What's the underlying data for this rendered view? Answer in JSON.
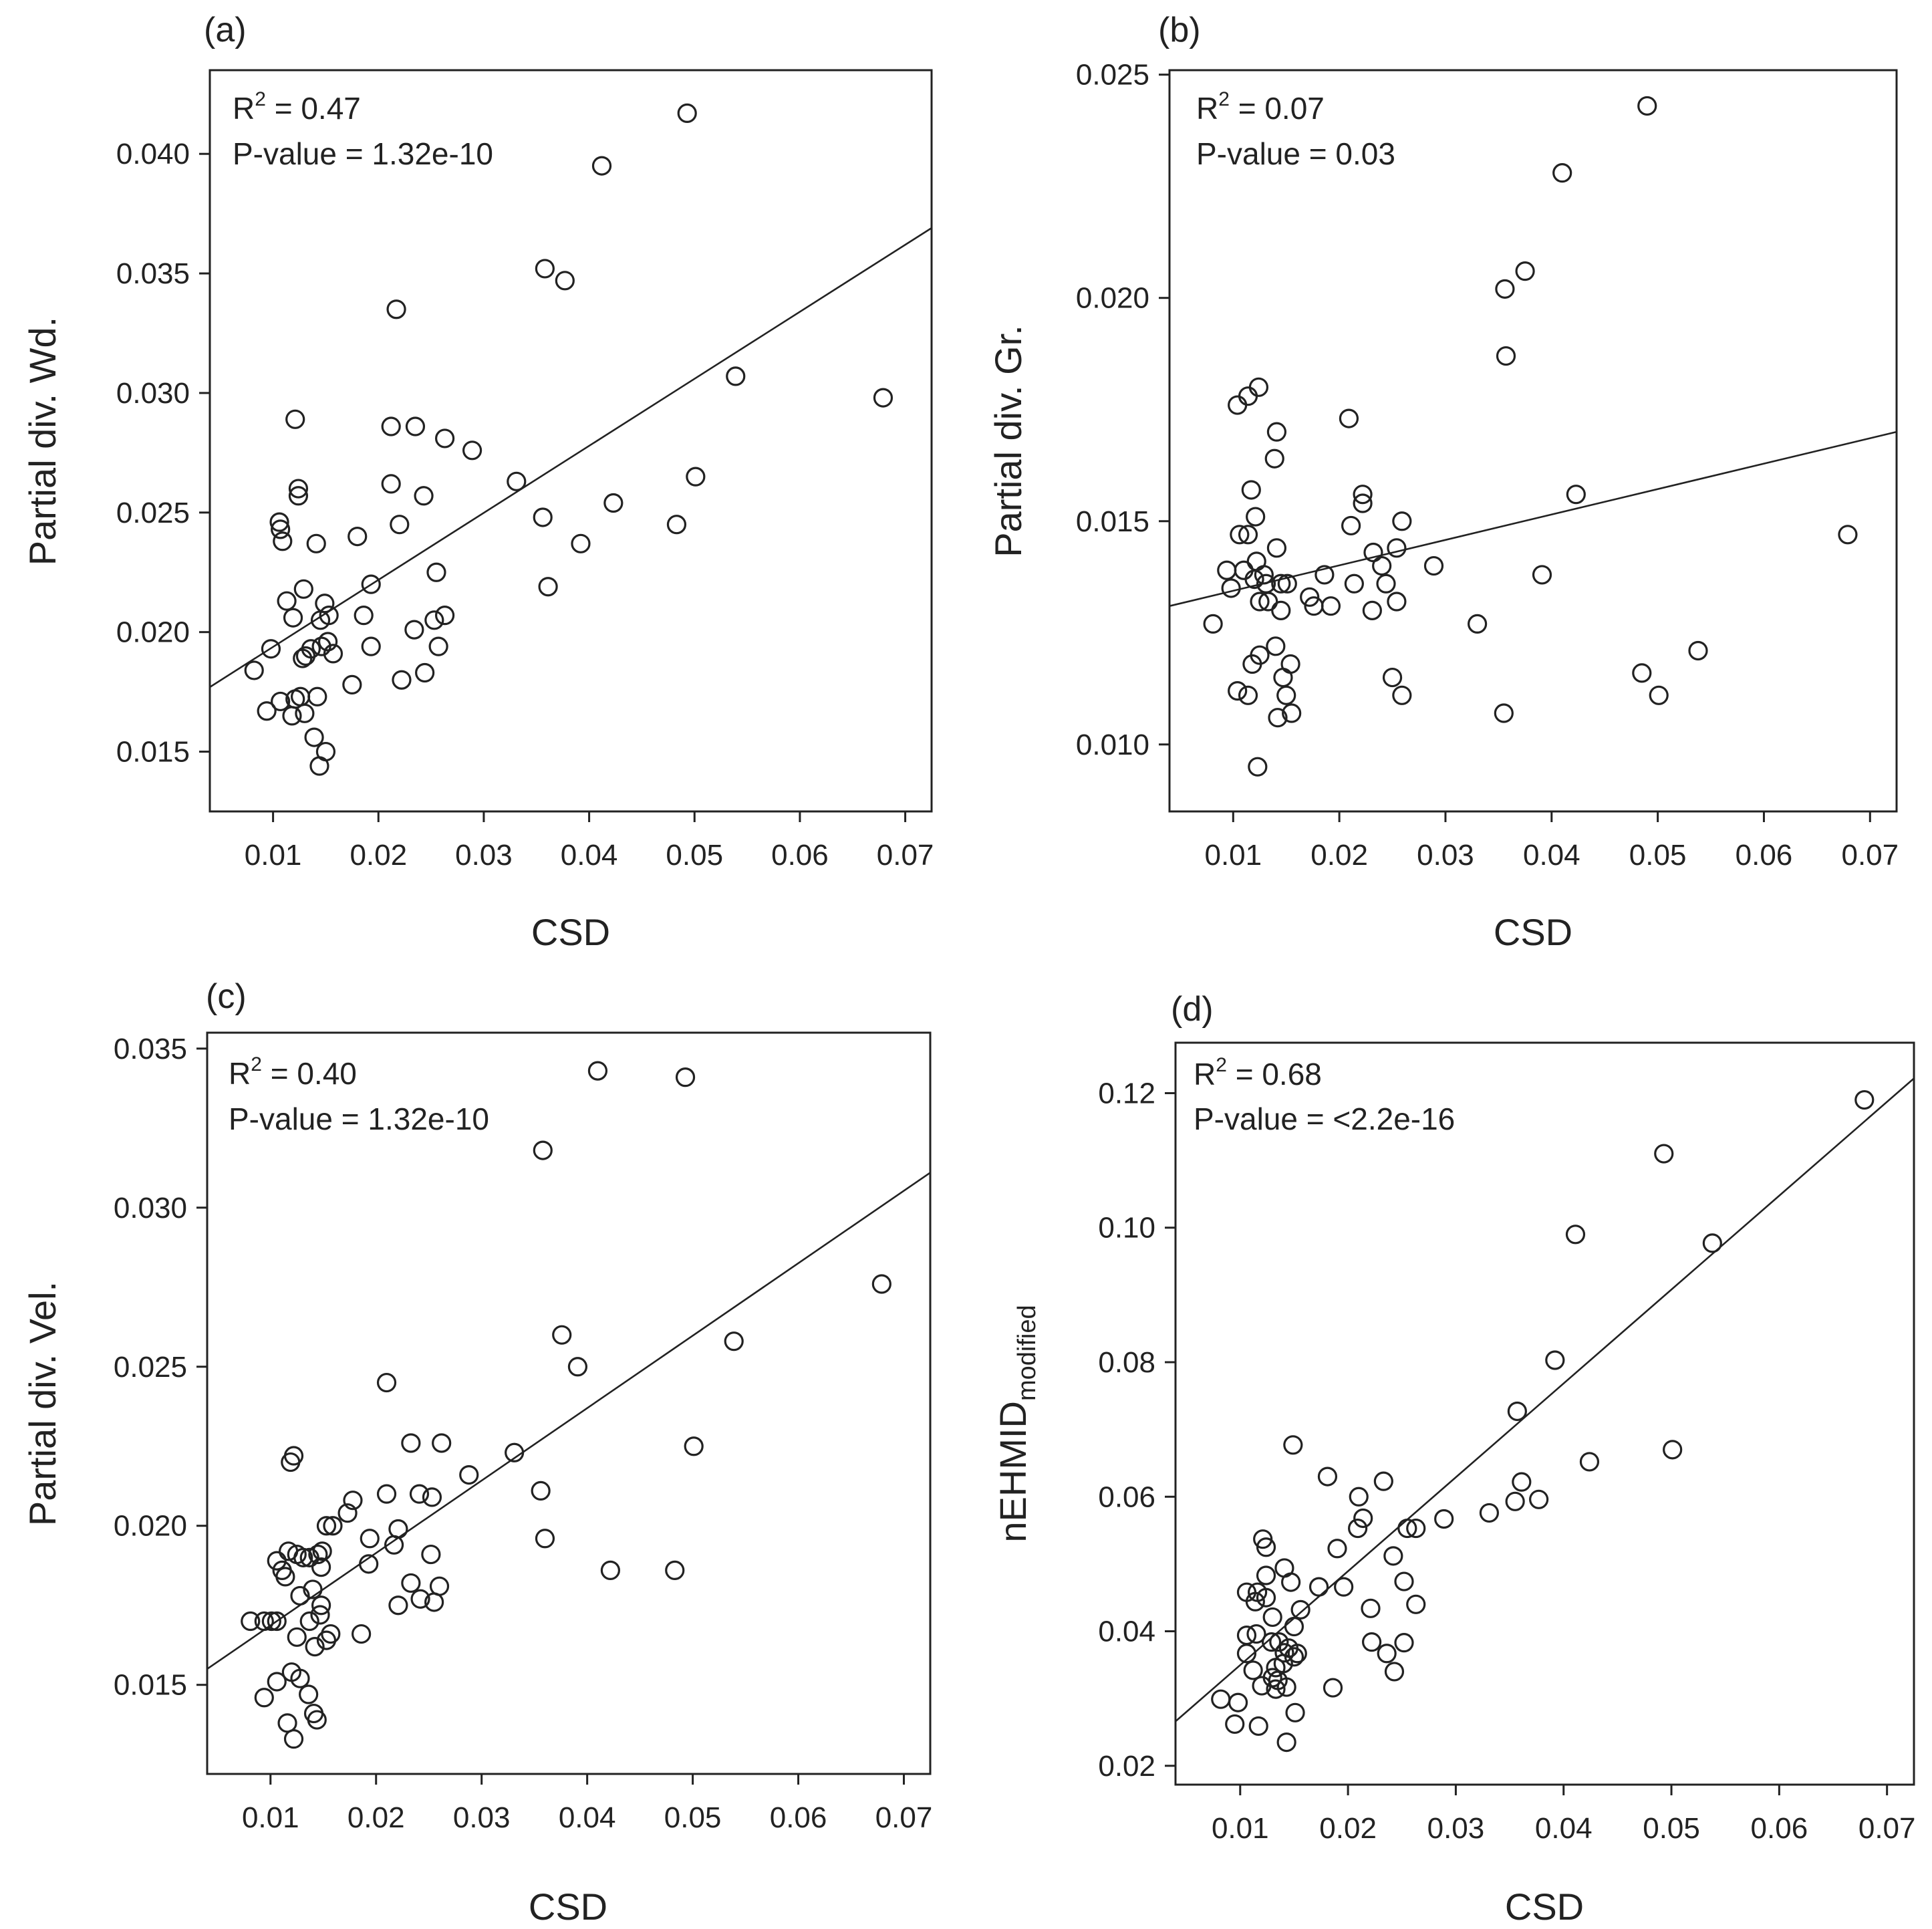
{
  "chart_data": [
    {
      "type": "scatter",
      "panel_label": "(a)",
      "xlabel": "CSD",
      "ylabel": "Partial div. Wd.",
      "xlim": [
        0.004,
        0.0725
      ],
      "ylim": [
        0.0125,
        0.0435
      ],
      "xticks": [
        0.01,
        0.02,
        0.03,
        0.04,
        0.05,
        0.06,
        0.07
      ],
      "xtick_labels": [
        "0.01",
        "0.02",
        "0.03",
        "0.04",
        "0.05",
        "0.06",
        "0.07"
      ],
      "yticks": [
        0.015,
        0.02,
        0.025,
        0.03,
        0.035,
        0.04
      ],
      "ytick_labels": [
        "0.015",
        "0.020",
        "0.025",
        "0.030",
        "0.035",
        "0.040"
      ],
      "stats": {
        "r2_prefix": "R",
        "r2_exp": "2",
        "r2_value": " = 0.47",
        "p_value": "P-value = 1.32e-10"
      },
      "fit_line": {
        "x": [
          0.004,
          0.0725
        ],
        "y": [
          0.0177,
          0.0369
        ]
      },
      "points": [
        [
          0.0493,
          0.0417
        ],
        [
          0.0412,
          0.0395
        ],
        [
          0.0358,
          0.0352
        ],
        [
          0.0377,
          0.0347
        ],
        [
          0.0217,
          0.0335
        ],
        [
          0.0539,
          0.0307
        ],
        [
          0.0679,
          0.0298
        ],
        [
          0.0121,
          0.0289
        ],
        [
          0.0212,
          0.0286
        ],
        [
          0.0235,
          0.0286
        ],
        [
          0.0263,
          0.0281
        ],
        [
          0.0289,
          0.0276
        ],
        [
          0.0331,
          0.0263
        ],
        [
          0.0501,
          0.0265
        ],
        [
          0.0212,
          0.0262
        ],
        [
          0.0124,
          0.026
        ],
        [
          0.0124,
          0.0257
        ],
        [
          0.0243,
          0.0257
        ],
        [
          0.0423,
          0.0254
        ],
        [
          0.0106,
          0.0246
        ],
        [
          0.0107,
          0.0243
        ],
        [
          0.0356,
          0.0248
        ],
        [
          0.0483,
          0.0245
        ],
        [
          0.022,
          0.0245
        ],
        [
          0.0109,
          0.0238
        ],
        [
          0.0141,
          0.0237
        ],
        [
          0.018,
          0.024
        ],
        [
          0.0392,
          0.0237
        ],
        [
          0.0255,
          0.0225
        ],
        [
          0.0361,
          0.0219
        ],
        [
          0.0129,
          0.0218
        ],
        [
          0.0193,
          0.022
        ],
        [
          0.0113,
          0.0213
        ],
        [
          0.0149,
          0.0212
        ],
        [
          0.0186,
          0.0207
        ],
        [
          0.0263,
          0.0207
        ],
        [
          0.0119,
          0.0206
        ],
        [
          0.0145,
          0.0205
        ],
        [
          0.0153,
          0.0207
        ],
        [
          0.0253,
          0.0205
        ],
        [
          0.0234,
          0.0201
        ],
        [
          0.0082,
          0.0184
        ],
        [
          0.0098,
          0.0193
        ],
        [
          0.0131,
          0.019
        ],
        [
          0.0128,
          0.0189
        ],
        [
          0.0136,
          0.0193
        ],
        [
          0.0146,
          0.0194
        ],
        [
          0.0152,
          0.0196
        ],
        [
          0.0157,
          0.0191
        ],
        [
          0.0193,
          0.0194
        ],
        [
          0.0257,
          0.0194
        ],
        [
          0.0244,
          0.0183
        ],
        [
          0.0222,
          0.018
        ],
        [
          0.0175,
          0.0178
        ],
        [
          0.0094,
          0.0167
        ],
        [
          0.0107,
          0.0171
        ],
        [
          0.0118,
          0.0165
        ],
        [
          0.0121,
          0.0172
        ],
        [
          0.0126,
          0.0173
        ],
        [
          0.013,
          0.0166
        ],
        [
          0.0142,
          0.0173
        ],
        [
          0.0139,
          0.0156
        ],
        [
          0.015,
          0.015
        ],
        [
          0.0144,
          0.0144
        ]
      ]
    },
    {
      "type": "scatter",
      "panel_label": "(b)",
      "xlabel": "CSD",
      "ylabel": "Partial div. Gr.",
      "xlim": [
        0.004,
        0.0725
      ],
      "ylim": [
        0.0085,
        0.0251
      ],
      "xticks": [
        0.01,
        0.02,
        0.03,
        0.04,
        0.05,
        0.06,
        0.07
      ],
      "xtick_labels": [
        "0.01",
        "0.02",
        "0.03",
        "0.04",
        "0.05",
        "0.06",
        "0.07"
      ],
      "yticks": [
        0.01,
        0.015,
        0.02,
        0.025
      ],
      "ytick_labels": [
        "0.010",
        "0.015",
        "0.020",
        "0.025"
      ],
      "stats": {
        "r2_prefix": "R",
        "r2_exp": "2",
        "r2_value": " = 0.07",
        "p_value": "P-value = 0.03"
      },
      "fit_line": {
        "x": [
          0.004,
          0.0725
        ],
        "y": [
          0.0131,
          0.017
        ]
      },
      "points": [
        [
          0.049,
          0.0243
        ],
        [
          0.041,
          0.0228
        ],
        [
          0.0356,
          0.0202
        ],
        [
          0.0375,
          0.0206
        ],
        [
          0.0357,
          0.0187
        ],
        [
          0.0104,
          0.0176
        ],
        [
          0.0114,
          0.0178
        ],
        [
          0.0124,
          0.018
        ],
        [
          0.0209,
          0.0173
        ],
        [
          0.0141,
          0.017
        ],
        [
          0.0139,
          0.0164
        ],
        [
          0.0117,
          0.0157
        ],
        [
          0.0222,
          0.0156
        ],
        [
          0.0222,
          0.0154
        ],
        [
          0.0423,
          0.0156
        ],
        [
          0.0121,
          0.0151
        ],
        [
          0.0259,
          0.015
        ],
        [
          0.0211,
          0.0149
        ],
        [
          0.0106,
          0.0147
        ],
        [
          0.0114,
          0.0147
        ],
        [
          0.0679,
          0.0147
        ],
        [
          0.0141,
          0.0144
        ],
        [
          0.0254,
          0.0144
        ],
        [
          0.0232,
          0.0143
        ],
        [
          0.0122,
          0.0141
        ],
        [
          0.011,
          0.0139
        ],
        [
          0.0094,
          0.0139
        ],
        [
          0.0289,
          0.014
        ],
        [
          0.024,
          0.014
        ],
        [
          0.0129,
          0.0138
        ],
        [
          0.0186,
          0.0138
        ],
        [
          0.0391,
          0.0138
        ],
        [
          0.0098,
          0.0135
        ],
        [
          0.012,
          0.0137
        ],
        [
          0.0131,
          0.0136
        ],
        [
          0.0145,
          0.0136
        ],
        [
          0.0151,
          0.0136
        ],
        [
          0.0214,
          0.0136
        ],
        [
          0.0244,
          0.0136
        ],
        [
          0.0133,
          0.0132
        ],
        [
          0.0125,
          0.0132
        ],
        [
          0.0172,
          0.0133
        ],
        [
          0.0176,
          0.0131
        ],
        [
          0.0192,
          0.0131
        ],
        [
          0.0254,
          0.0132
        ],
        [
          0.0145,
          0.013
        ],
        [
          0.0231,
          0.013
        ],
        [
          0.0081,
          0.0127
        ],
        [
          0.033,
          0.0127
        ],
        [
          0.0538,
          0.0121
        ],
        [
          0.014,
          0.0122
        ],
        [
          0.0125,
          0.012
        ],
        [
          0.0118,
          0.0118
        ],
        [
          0.0154,
          0.0118
        ],
        [
          0.0485,
          0.0116
        ],
        [
          0.0147,
          0.0115
        ],
        [
          0.025,
          0.0115
        ],
        [
          0.0104,
          0.0112
        ],
        [
          0.0114,
          0.0111
        ],
        [
          0.015,
          0.0111
        ],
        [
          0.0259,
          0.0111
        ],
        [
          0.0501,
          0.0111
        ],
        [
          0.0155,
          0.0107
        ],
        [
          0.0142,
          0.0106
        ],
        [
          0.0355,
          0.0107
        ],
        [
          0.0123,
          0.0095
        ]
      ]
    },
    {
      "type": "scatter",
      "panel_label": "(c)",
      "xlabel": "CSD",
      "ylabel": "Partial div. Vel.",
      "xlim": [
        0.004,
        0.0725
      ],
      "ylim": [
        0.0122,
        0.0355
      ],
      "xticks": [
        0.01,
        0.02,
        0.03,
        0.04,
        0.05,
        0.06,
        0.07
      ],
      "xtick_labels": [
        "0.01",
        "0.02",
        "0.03",
        "0.04",
        "0.05",
        "0.06",
        "0.07"
      ],
      "yticks": [
        0.015,
        0.02,
        0.025,
        0.03,
        0.035
      ],
      "ytick_labels": [
        "0.015",
        "0.020",
        "0.025",
        "0.030",
        "0.035"
      ],
      "stats": {
        "r2_prefix": "R",
        "r2_exp": "2",
        "r2_value": " = 0.40",
        "p_value": "P-value = 1.32e-10"
      },
      "fit_line": {
        "x": [
          0.004,
          0.0725
        ],
        "y": [
          0.0155,
          0.0311
        ]
      },
      "points": [
        [
          0.041,
          0.0343
        ],
        [
          0.0493,
          0.0341
        ],
        [
          0.0358,
          0.0318
        ],
        [
          0.0679,
          0.0276
        ],
        [
          0.0376,
          0.026
        ],
        [
          0.0539,
          0.0258
        ],
        [
          0.0391,
          0.025
        ],
        [
          0.021,
          0.0245
        ],
        [
          0.0122,
          0.0222
        ],
        [
          0.0119,
          0.022
        ],
        [
          0.0233,
          0.0226
        ],
        [
          0.0262,
          0.0226
        ],
        [
          0.0331,
          0.0223
        ],
        [
          0.0501,
          0.0225
        ],
        [
          0.0288,
          0.0216
        ],
        [
          0.0356,
          0.0211
        ],
        [
          0.021,
          0.021
        ],
        [
          0.0241,
          0.021
        ],
        [
          0.0253,
          0.0209
        ],
        [
          0.0178,
          0.0208
        ],
        [
          0.0173,
          0.0204
        ],
        [
          0.0153,
          0.02
        ],
        [
          0.0159,
          0.02
        ],
        [
          0.0221,
          0.0199
        ],
        [
          0.0194,
          0.0196
        ],
        [
          0.036,
          0.0196
        ],
        [
          0.0217,
          0.0194
        ],
        [
          0.0117,
          0.0192
        ],
        [
          0.0106,
          0.0189
        ],
        [
          0.0125,
          0.0191
        ],
        [
          0.0131,
          0.019
        ],
        [
          0.0137,
          0.019
        ],
        [
          0.0145,
          0.0191
        ],
        [
          0.0149,
          0.0192
        ],
        [
          0.0252,
          0.0191
        ],
        [
          0.0111,
          0.0186
        ],
        [
          0.0114,
          0.0184
        ],
        [
          0.0148,
          0.0187
        ],
        [
          0.0193,
          0.0188
        ],
        [
          0.0422,
          0.0186
        ],
        [
          0.0483,
          0.0186
        ],
        [
          0.0233,
          0.0182
        ],
        [
          0.026,
          0.0181
        ],
        [
          0.014,
          0.018
        ],
        [
          0.0128,
          0.0178
        ],
        [
          0.0242,
          0.0177
        ],
        [
          0.0255,
          0.0176
        ],
        [
          0.0148,
          0.0175
        ],
        [
          0.0147,
          0.0172
        ],
        [
          0.0221,
          0.0175
        ],
        [
          0.0081,
          0.017
        ],
        [
          0.0094,
          0.017
        ],
        [
          0.0101,
          0.017
        ],
        [
          0.0106,
          0.017
        ],
        [
          0.0137,
          0.017
        ],
        [
          0.0186,
          0.0166
        ],
        [
          0.0125,
          0.0165
        ],
        [
          0.0157,
          0.0166
        ],
        [
          0.0153,
          0.0164
        ],
        [
          0.0142,
          0.0162
        ],
        [
          0.012,
          0.0154
        ],
        [
          0.0128,
          0.0152
        ],
        [
          0.0106,
          0.0151
        ],
        [
          0.0136,
          0.0147
        ],
        [
          0.0094,
          0.0146
        ],
        [
          0.0141,
          0.0141
        ],
        [
          0.0116,
          0.0138
        ],
        [
          0.0144,
          0.0139
        ],
        [
          0.0122,
          0.0133
        ]
      ]
    },
    {
      "type": "scatter",
      "panel_label": "(d)",
      "xlabel": "CSD",
      "ylabel": "nEHMID",
      "ylabel_subscript": "modified",
      "xlim": [
        0.004,
        0.0725
      ],
      "ylim": [
        0.0172,
        0.1275
      ],
      "xticks": [
        0.01,
        0.02,
        0.03,
        0.04,
        0.05,
        0.06,
        0.07
      ],
      "xtick_labels": [
        "0.01",
        "0.02",
        "0.03",
        "0.04",
        "0.05",
        "0.06",
        "0.07"
      ],
      "yticks": [
        0.02,
        0.04,
        0.06,
        0.08,
        0.1,
        0.12
      ],
      "ytick_labels": [
        "0.02",
        "0.04",
        "0.06",
        "0.08",
        "0.10",
        "0.12"
      ],
      "stats": {
        "r2_prefix": "R",
        "r2_exp": "2",
        "r2_value": " = 0.68",
        "p_value": "P-value = <2.2e-16"
      },
      "fit_line": {
        "x": [
          0.004,
          0.0725
        ],
        "y": [
          0.0266,
          0.1222
        ]
      },
      "points": [
        [
          0.0679,
          0.119
        ],
        [
          0.0493,
          0.111
        ],
        [
          0.0411,
          0.099
        ],
        [
          0.0538,
          0.0977
        ],
        [
          0.0392,
          0.0803
        ],
        [
          0.0357,
          0.0727
        ],
        [
          0.0149,
          0.0677
        ],
        [
          0.0501,
          0.067
        ],
        [
          0.0424,
          0.0652
        ],
        [
          0.0181,
          0.063
        ],
        [
          0.0233,
          0.0623
        ],
        [
          0.0361,
          0.0622
        ],
        [
          0.021,
          0.06
        ],
        [
          0.0377,
          0.0596
        ],
        [
          0.0355,
          0.0593
        ],
        [
          0.0331,
          0.0576
        ],
        [
          0.0214,
          0.0568
        ],
        [
          0.0289,
          0.0567
        ],
        [
          0.0209,
          0.0553
        ],
        [
          0.0255,
          0.0553
        ],
        [
          0.0263,
          0.0553
        ],
        [
          0.019,
          0.0523
        ],
        [
          0.0242,
          0.0512
        ],
        [
          0.0121,
          0.0537
        ],
        [
          0.0124,
          0.0525
        ],
        [
          0.0141,
          0.0494
        ],
        [
          0.0124,
          0.0483
        ],
        [
          0.0147,
          0.0473
        ],
        [
          0.0252,
          0.0474
        ],
        [
          0.0173,
          0.0466
        ],
        [
          0.0196,
          0.0466
        ],
        [
          0.0106,
          0.0458
        ],
        [
          0.0116,
          0.0458
        ],
        [
          0.0124,
          0.045
        ],
        [
          0.0114,
          0.0444
        ],
        [
          0.0263,
          0.044
        ],
        [
          0.0221,
          0.0434
        ],
        [
          0.0156,
          0.0432
        ],
        [
          0.013,
          0.0421
        ],
        [
          0.015,
          0.0407
        ],
        [
          0.0106,
          0.0394
        ],
        [
          0.0115,
          0.0396
        ],
        [
          0.0129,
          0.0384
        ],
        [
          0.0136,
          0.0384
        ],
        [
          0.0222,
          0.0384
        ],
        [
          0.0252,
          0.0383
        ],
        [
          0.0145,
          0.0375
        ],
        [
          0.0141,
          0.0368
        ],
        [
          0.0106,
          0.0367
        ],
        [
          0.0153,
          0.0367
        ],
        [
          0.0236,
          0.0367
        ],
        [
          0.015,
          0.0362
        ],
        [
          0.014,
          0.0352
        ],
        [
          0.0133,
          0.0346
        ],
        [
          0.0112,
          0.0342
        ],
        [
          0.0243,
          0.034
        ],
        [
          0.013,
          0.0331
        ],
        [
          0.0135,
          0.0327
        ],
        [
          0.012,
          0.0319
        ],
        [
          0.0143,
          0.0317
        ],
        [
          0.0186,
          0.0316
        ],
        [
          0.0133,
          0.0314
        ],
        [
          0.0082,
          0.0299
        ],
        [
          0.0098,
          0.0294
        ],
        [
          0.0151,
          0.0279
        ],
        [
          0.0095,
          0.0262
        ],
        [
          0.0117,
          0.0259
        ],
        [
          0.0143,
          0.0235
        ]
      ]
    }
  ]
}
